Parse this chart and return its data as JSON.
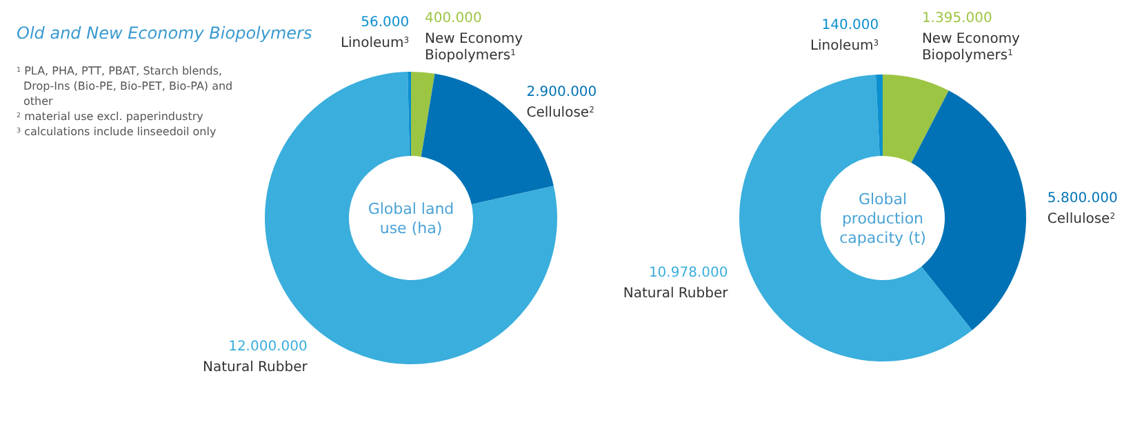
{
  "chart_data": [
    {
      "type": "donut",
      "title": "Old and New Economy Biopolymers",
      "subtitle": "Global land use (ha)",
      "categories": [
        "New Economy Biopolymers$^{1}$",
        "Cellulose$^{2}$",
        "Natural Rubber",
        "Linoleum$^{3}$"
      ],
      "values": [
        400000,
        2900000,
        12000000,
        56000
      ],
      "value_labels": [
        "400.000",
        "2.900.000",
        "12.000.000",
        "56.000"
      ],
      "colors": [
        "#9dc544",
        "#0072b5",
        "#3aaedc",
        "#0a8fcf"
      ],
      "annotations": [
        "$^{1}$ PLA, PHA, PTT, PBAT, Starch blends, Drop-Ins (Bio-PE, Bio-PET, Bio-PA) and other",
        "$^{2}$ material use excl. paperindustry",
        "$^{3}$ calculations include linseedoil only"
      ]
    },
    {
      "type": "donut",
      "subtitle": "Global production capacity (t)",
      "categories": [
        "New Economy Biopolymers$^{1}$",
        "Cellulose$^{2}$",
        "Natural Rubber",
        "Linoleum$^{3}$"
      ],
      "values": [
        1395000,
        5800000,
        10978000,
        140000
      ],
      "value_labels": [
        "1.395.000",
        "5.800.000",
        "10.978.000",
        "140.000"
      ],
      "colors": [
        "#9dc544",
        "#0072b5",
        "#3aaedc",
        "#0a8fcf"
      ]
    }
  ]
}
